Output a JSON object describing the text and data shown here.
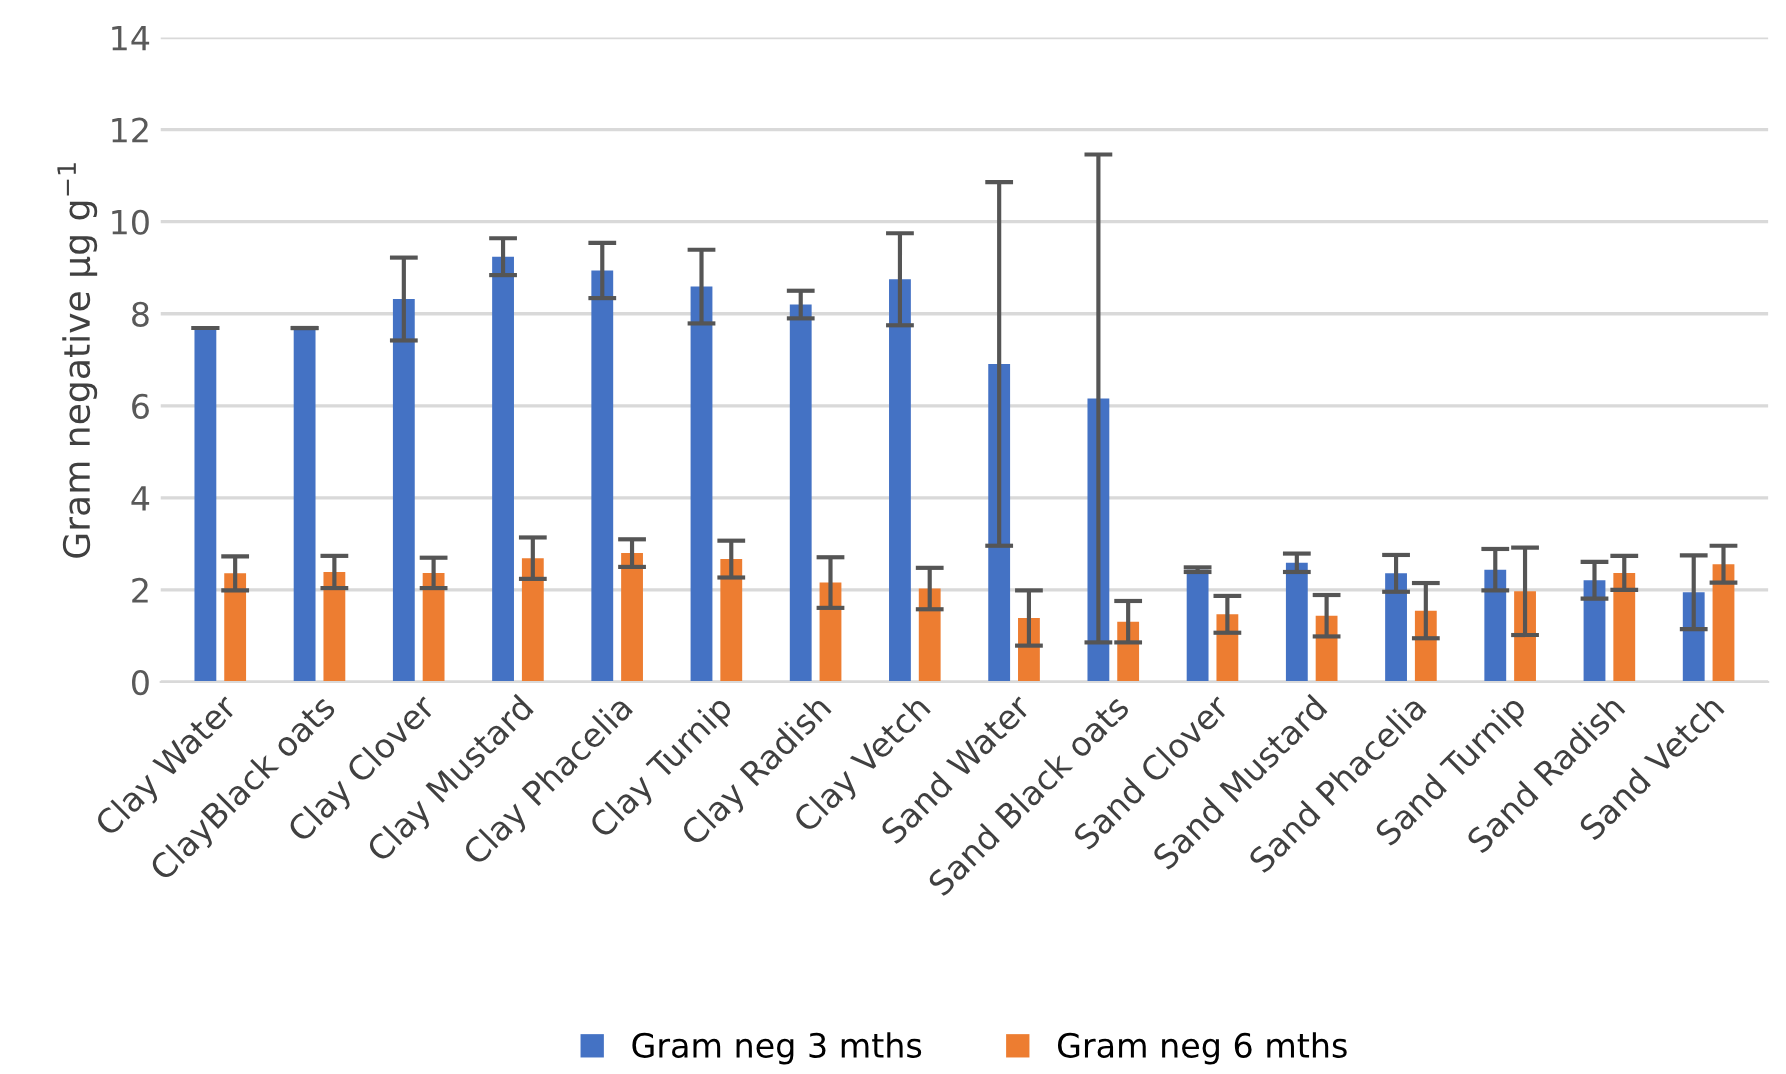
{
  "chart_data": {
    "type": "bar",
    "ylabel": "Gram negative µg g$^{−1}$",
    "categories": [
      "Clay Water",
      "ClayBlack oats",
      "Clay Clover",
      "Clay Mustard",
      "Clay Phacelia",
      "Clay Turnip",
      "Clay Radish",
      "Clay Vetch",
      "Sand Water",
      "Sand Black oats",
      "Sand Clover",
      "Sand Mustard",
      "Sand Phacelia",
      "Sand Turnip",
      "Sand Radish",
      "Sand Vetch"
    ],
    "series": [
      {
        "name": "Gram neg 3 mths",
        "color": "#4472c4",
        "values": [
          7.69,
          7.69,
          8.32,
          9.24,
          8.94,
          8.59,
          8.2,
          8.75,
          6.91,
          6.16,
          2.44,
          2.59,
          2.36,
          2.44,
          2.21,
          1.95
        ],
        "errors": [
          0,
          0,
          0.9,
          0.4,
          0.6,
          0.8,
          0.3,
          1.0,
          3.95,
          5.3,
          0.05,
          0.2,
          0.4,
          0.45,
          0.4,
          0.8
        ]
      },
      {
        "name": "Gram neg 6 mths",
        "color": "#ed7d31",
        "values": [
          2.36,
          2.39,
          2.37,
          2.69,
          2.8,
          2.67,
          2.16,
          2.03,
          1.39,
          1.31,
          1.47,
          1.44,
          1.55,
          1.97,
          2.37,
          2.56
        ],
        "errors": [
          0.37,
          0.35,
          0.33,
          0.45,
          0.3,
          0.4,
          0.55,
          0.45,
          0.6,
          0.45,
          0.4,
          0.45,
          0.6,
          0.95,
          0.37,
          0.4
        ]
      }
    ],
    "ylim": [
      0,
      14
    ],
    "yticks": [
      0,
      2,
      4,
      6,
      8,
      10,
      12,
      14
    ],
    "grid": "y",
    "legend": "bottom"
  }
}
